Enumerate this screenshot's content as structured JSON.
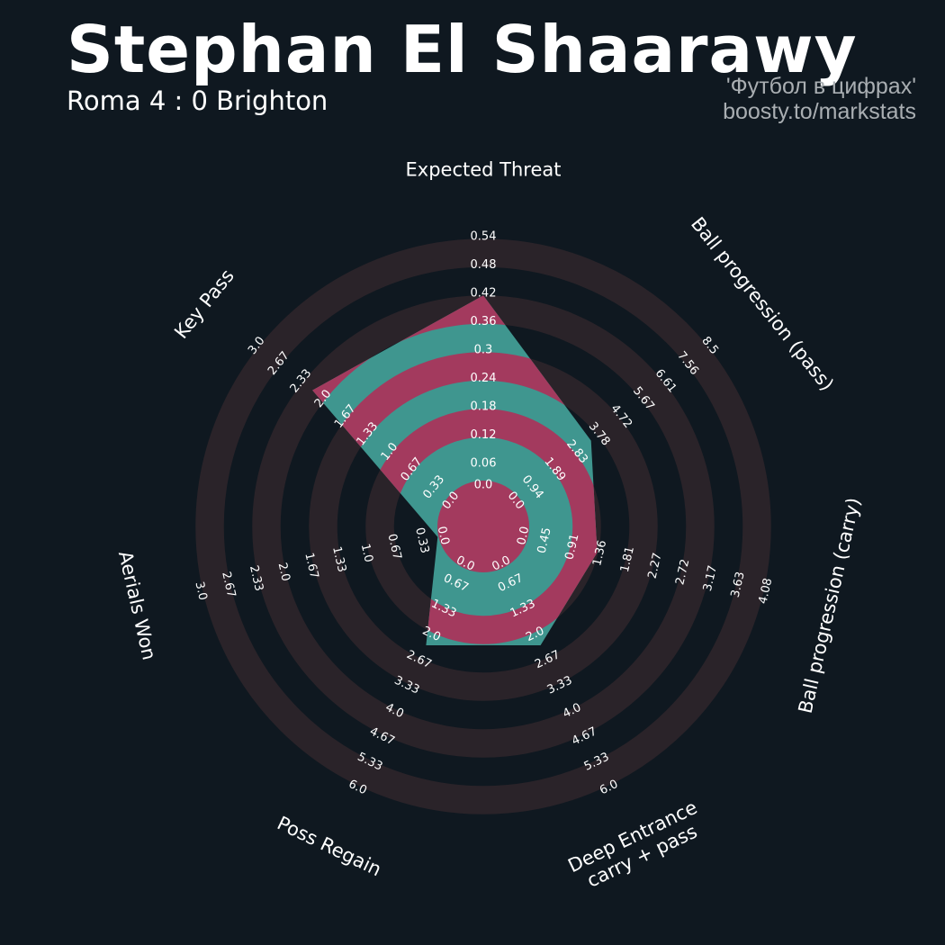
{
  "header": {
    "title": "Stephan El Shaarawy",
    "subtitle": "Roma 4 : 0 Brighton",
    "credit_line1": "'Футбол в цифрах'",
    "credit_line2": "boosty.to/markstats"
  },
  "colors": {
    "background": "#0f1820",
    "ring_band": "#2a2329",
    "fill_teal": "#3f968f",
    "fill_magenta": "#a33a5e",
    "text": "#ffffff",
    "credit": "#a9aeb2"
  },
  "chart_data": {
    "type": "radar",
    "title": "Stephan El Shaarawy",
    "subtitle": "Roma 4 : 0 Brighton",
    "rings": 10,
    "grid": true,
    "parameters": [
      {
        "label": "Expected Threat",
        "ticks": [
          "0.0",
          "0.06",
          "0.12",
          "0.18",
          "0.24",
          "0.3",
          "0.36",
          "0.42",
          "0.48",
          "0.54"
        ],
        "min": 0,
        "max": 0.54,
        "value": 0.39
      },
      {
        "label": "Ball progression (pass)",
        "ticks": [
          "0.0",
          "0.94",
          "1.89",
          "2.83",
          "3.78",
          "4.72",
          "5.67",
          "6.61",
          "7.56",
          "8.5"
        ],
        "min": 0,
        "max": 8.5,
        "value": 3.03
      },
      {
        "label": "Ball progression (carry)",
        "ticks": [
          "0.0",
          "0.45",
          "0.91",
          "1.36",
          "1.81",
          "2.27",
          "2.72",
          "3.17",
          "3.63",
          "4.08"
        ],
        "min": 0,
        "max": 4.08,
        "value": 1.12
      },
      {
        "label": "Deep Entrance\ncarry + pass",
        "ticks": [
          "0.0",
          "0.67",
          "1.33",
          "2.0",
          "2.67",
          "3.33",
          "4.0",
          "4.67",
          "5.33",
          "6.0"
        ],
        "min": 0,
        "max": 6.0,
        "value": 2.0
      },
      {
        "label": "Poss Regain",
        "ticks": [
          "0.0",
          "0.67",
          "1.33",
          "2.0",
          "2.67",
          "3.33",
          "4.0",
          "4.67",
          "5.33",
          "6.0"
        ],
        "min": 0,
        "max": 6.0,
        "value": 2.0
      },
      {
        "label": "Aerials Won",
        "ticks": [
          "0.0",
          "0.33",
          "0.67",
          "1.0",
          "1.33",
          "1.67",
          "2.0",
          "2.33",
          "2.67",
          "3.0"
        ],
        "min": 0,
        "max": 3.0,
        "value": 0.0
      },
      {
        "label": "Key Pass",
        "ticks": [
          "0.0",
          "0.33",
          "0.67",
          "1.0",
          "1.33",
          "1.67",
          "2.0",
          "2.33",
          "2.67",
          "3.0"
        ],
        "min": 0,
        "max": 3.0,
        "value": 2.02
      }
    ]
  }
}
